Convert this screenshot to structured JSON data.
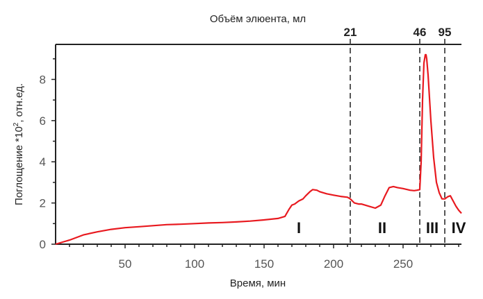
{
  "chart_data": {
    "type": "line",
    "xlabel": "Время, мин",
    "ylabel": "Поглощение *10",
    "ylabel_sup": "2",
    "ylabel_unit": ", отн.ед.",
    "x2label": "Объём элюента, мл",
    "xlim": [
      0,
      292
    ],
    "ylim": [
      0,
      9.7
    ],
    "xticks": [
      50,
      100,
      150,
      200,
      250
    ],
    "yticks": [
      0,
      2,
      4,
      6,
      8
    ],
    "line_color": "#e8191f",
    "markers": [
      {
        "x": 212,
        "label": "21"
      },
      {
        "x": 262,
        "label": "46"
      },
      {
        "x": 280,
        "label": "95"
      }
    ],
    "regions": [
      {
        "label": "I",
        "x": 175
      },
      {
        "label": "II",
        "x": 235
      },
      {
        "label": "III",
        "x": 271
      },
      {
        "label": "IV",
        "x": 290
      }
    ],
    "series": [
      {
        "x": [
          0,
          5,
          10,
          20,
          30,
          40,
          50,
          60,
          70,
          80,
          90,
          100,
          110,
          120,
          130,
          140,
          150,
          160,
          165,
          168,
          170,
          172,
          175,
          178,
          180,
          183,
          185,
          188,
          190,
          195,
          200,
          205,
          210,
          212,
          215,
          218,
          220,
          225,
          230,
          234,
          237,
          240,
          243,
          246,
          250,
          255,
          258,
          260,
          262,
          263,
          264,
          265,
          266,
          266.5,
          267,
          268,
          270,
          272,
          274,
          276,
          278,
          280,
          282,
          284,
          286,
          288,
          290,
          292
        ],
        "y": [
          0.0,
          0.1,
          0.2,
          0.45,
          0.6,
          0.72,
          0.8,
          0.85,
          0.9,
          0.95,
          0.97,
          1.0,
          1.03,
          1.05,
          1.08,
          1.12,
          1.18,
          1.25,
          1.35,
          1.7,
          1.9,
          1.95,
          2.1,
          2.2,
          2.35,
          2.55,
          2.65,
          2.62,
          2.55,
          2.45,
          2.38,
          2.32,
          2.28,
          2.2,
          2.0,
          1.95,
          1.95,
          1.85,
          1.75,
          1.9,
          2.35,
          2.75,
          2.8,
          2.75,
          2.7,
          2.62,
          2.6,
          2.62,
          2.65,
          4.0,
          7.0,
          8.8,
          9.2,
          9.2,
          9.0,
          8.2,
          6.0,
          4.2,
          3.0,
          2.5,
          2.2,
          2.2,
          2.3,
          2.35,
          2.1,
          1.85,
          1.65,
          1.5
        ]
      }
    ]
  }
}
